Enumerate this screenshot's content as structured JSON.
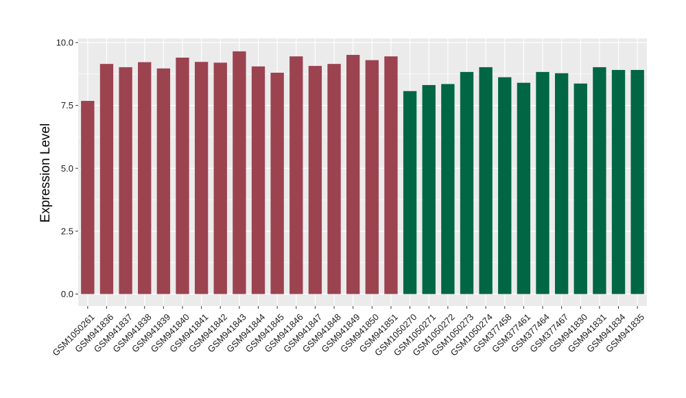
{
  "chart_data": {
    "type": "bar",
    "title": "",
    "xlabel": "",
    "ylabel": "Expression Level",
    "ylim": [
      0,
      10
    ],
    "yticks": [
      "0.0",
      "2.5",
      "5.0",
      "7.5",
      "10.0"
    ],
    "ytick_values": [
      0,
      2.5,
      5,
      7.5,
      10
    ],
    "grid": true,
    "legend": "none",
    "panel_background": "#ebebeb",
    "grid_color": "#ffffff",
    "categories": [
      "GSM1050261",
      "GSM941836",
      "GSM941837",
      "GSM941838",
      "GSM941839",
      "GSM941840",
      "GSM941841",
      "GSM941842",
      "GSM941843",
      "GSM941844",
      "GSM941845",
      "GSM941846",
      "GSM941847",
      "GSM941848",
      "GSM941849",
      "GSM941850",
      "GSM941851",
      "GSM1050270",
      "GSM1050271",
      "GSM1050272",
      "GSM1050273",
      "GSM1050274",
      "GSM377458",
      "GSM377461",
      "GSM377464",
      "GSM377467",
      "GSM941830",
      "GSM941831",
      "GSM941834",
      "GSM941835"
    ],
    "values": [
      7.68,
      9.15,
      9.02,
      9.22,
      8.97,
      9.4,
      9.23,
      9.2,
      9.65,
      9.05,
      8.8,
      9.45,
      9.07,
      9.15,
      9.51,
      9.3,
      9.45,
      8.07,
      8.31,
      8.35,
      8.83,
      9.02,
      8.62,
      8.4,
      8.83,
      8.78,
      8.37,
      9.02,
      8.91,
      8.91
    ],
    "colors": [
      "#9c4350",
      "#9c4350",
      "#9c4350",
      "#9c4350",
      "#9c4350",
      "#9c4350",
      "#9c4350",
      "#9c4350",
      "#9c4350",
      "#9c4350",
      "#9c4350",
      "#9c4350",
      "#9c4350",
      "#9c4350",
      "#9c4350",
      "#9c4350",
      "#9c4350",
      "#006644",
      "#006644",
      "#006644",
      "#006644",
      "#006644",
      "#006644",
      "#006644",
      "#006644",
      "#006644",
      "#006644",
      "#006644",
      "#006644",
      "#006644"
    ]
  }
}
